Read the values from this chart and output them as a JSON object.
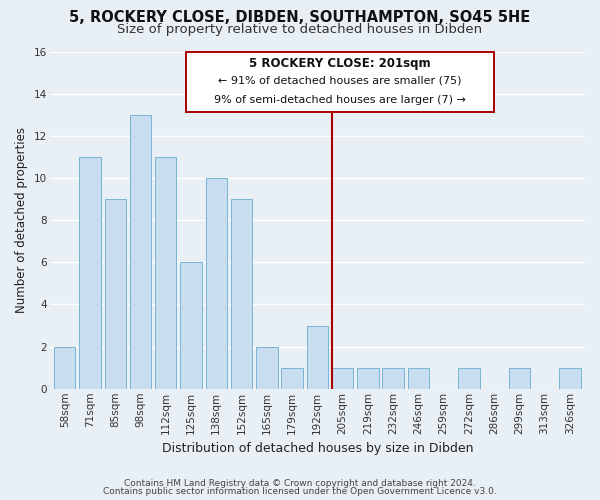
{
  "title1": "5, ROCKERY CLOSE, DIBDEN, SOUTHAMPTON, SO45 5HE",
  "title2": "Size of property relative to detached houses in Dibden",
  "xlabel": "Distribution of detached houses by size in Dibden",
  "ylabel": "Number of detached properties",
  "categories": [
    "58sqm",
    "71sqm",
    "85sqm",
    "98sqm",
    "112sqm",
    "125sqm",
    "138sqm",
    "152sqm",
    "165sqm",
    "179sqm",
    "192sqm",
    "205sqm",
    "219sqm",
    "232sqm",
    "246sqm",
    "259sqm",
    "272sqm",
    "286sqm",
    "299sqm",
    "313sqm",
    "326sqm"
  ],
  "values": [
    2,
    11,
    9,
    13,
    11,
    6,
    10,
    9,
    2,
    1,
    3,
    1,
    1,
    1,
    1,
    0,
    1,
    0,
    1,
    0,
    1
  ],
  "highlight_index": 11,
  "bar_color_normal": "#c8ddef",
  "bar_edge_color": "#7ab3d4",
  "highlight_line_color": "#aa0000",
  "annotation_box_edge": "#aa0000",
  "annotation_title": "5 ROCKERY CLOSE: 201sqm",
  "annotation_line1": "← 91% of detached houses are smaller (75)",
  "annotation_line2": "9% of semi-detached houses are larger (7) →",
  "ylim": [
    0,
    16
  ],
  "yticks": [
    0,
    2,
    4,
    6,
    8,
    10,
    12,
    14,
    16
  ],
  "footer1": "Contains HM Land Registry data © Crown copyright and database right 2024.",
  "footer2": "Contains public sector information licensed under the Open Government Licence v3.0.",
  "background_color": "#e8eff5",
  "grid_color": "#ffffff",
  "title_fontsize": 10.5,
  "subtitle_fontsize": 9.5,
  "tick_fontsize": 7.5,
  "ylabel_fontsize": 8.5,
  "xlabel_fontsize": 9,
  "footer_fontsize": 6.5
}
